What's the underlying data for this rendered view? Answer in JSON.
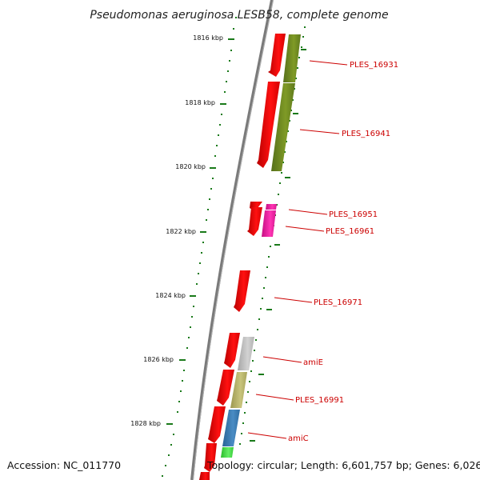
{
  "title": "Pseudomonas aeruginosa LESB58, complete genome",
  "ticks": [
    {
      "kbp": 1816,
      "label": "1816 kbp"
    },
    {
      "kbp": 1818,
      "label": "1818 kbp"
    },
    {
      "kbp": 1820,
      "label": "1820 kbp"
    },
    {
      "kbp": 1822,
      "label": "1822 kbp"
    },
    {
      "kbp": 1824,
      "label": "1824 kbp"
    },
    {
      "kbp": 1826,
      "label": "1826 kbp"
    },
    {
      "kbp": 1828,
      "label": "1828 kbp"
    }
  ],
  "gene_labels": [
    "PLES_16931",
    "PLES_16941",
    "PLES_16951",
    "PLES_16961",
    "PLES_16971",
    "amiE",
    "PLES_16991",
    "amiC"
  ],
  "footer": {
    "accession": "Accession: NC_011770",
    "topology": "Topology: circular; Length: 6,601,757 bp; Genes: 6,026"
  },
  "colors": {
    "backbone": "#7a7a7a",
    "cds_red": "#ee0000",
    "tick_green": "#1a7a1a",
    "label_red": "#cc0000",
    "olive": "#6e8a1a",
    "magenta": "#ee1ea0",
    "grey": "#c0c0c0",
    "khaki": "#b8b46a",
    "steel_blue": "#3a78b0",
    "light_green": "#44dd44"
  }
}
